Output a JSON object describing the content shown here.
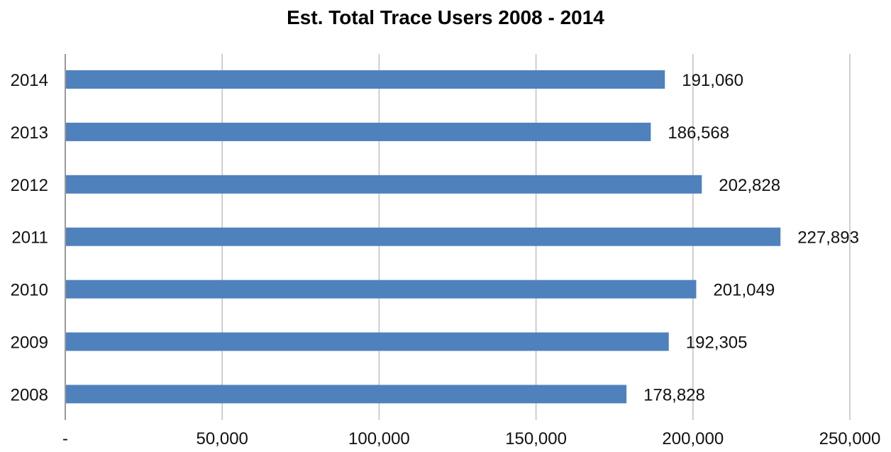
{
  "chart_data": {
    "type": "bar",
    "orientation": "horizontal",
    "title": "Est. Total Trace Users 2008 - 2014",
    "xlabel": "",
    "ylabel": "",
    "categories": [
      "2014",
      "2013",
      "2012",
      "2011",
      "2010",
      "2009",
      "2008"
    ],
    "values": [
      191060,
      186568,
      202828,
      227893,
      201049,
      192305,
      178828
    ],
    "data_labels": [
      "191,060",
      "186,568",
      "202,828",
      "227,893",
      "201,049",
      "192,305",
      "178,828"
    ],
    "xlim": [
      0,
      250000
    ],
    "x_ticks": [
      0,
      50000,
      100000,
      150000,
      200000,
      250000
    ],
    "x_tick_labels": [
      "-",
      "50,000",
      "100,000",
      "150,000",
      "200,000",
      "250,000"
    ],
    "grid": "vertical",
    "legend": "none",
    "bar_color": "#4f81bd",
    "grid_color": "#c0c0c0"
  }
}
